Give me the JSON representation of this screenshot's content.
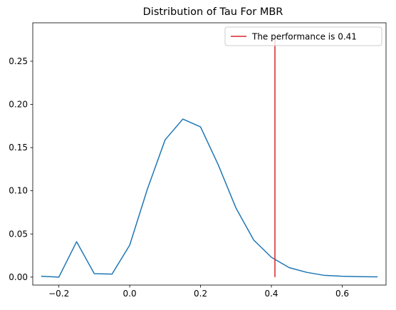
{
  "chart_data": {
    "type": "line",
    "title": "Distribution of Tau For MBR",
    "xlabel": "",
    "ylabel": "",
    "xlim": [
      -0.2737,
      0.7237
    ],
    "ylim": [
      -0.0092,
      0.2945
    ],
    "xticks": [
      -0.2,
      0.0,
      0.2,
      0.4,
      0.6
    ],
    "xtick_labels": [
      "−0.2",
      "0.0",
      "0.2",
      "0.4",
      "0.6"
    ],
    "yticks": [
      0.0,
      0.05,
      0.1,
      0.15,
      0.2,
      0.25
    ],
    "ytick_labels": [
      "0.00",
      "0.05",
      "0.10",
      "0.15",
      "0.20",
      "0.25"
    ],
    "grid": false,
    "legend_position": "top-right",
    "series": [
      {
        "color": "#1f77b4",
        "x": [
          -0.25,
          -0.2,
          -0.15,
          -0.1,
          -0.05,
          0.0,
          0.05,
          0.1,
          0.15,
          0.2,
          0.25,
          0.3,
          0.35,
          0.4,
          0.45,
          0.5,
          0.55,
          0.6,
          0.65,
          0.7
        ],
        "y": [
          0.001,
          0.0,
          0.041,
          0.004,
          0.0035,
          0.037,
          0.102,
          0.159,
          0.183,
          0.174,
          0.13,
          0.08,
          0.043,
          0.023,
          0.011,
          0.0055,
          0.002,
          0.001,
          0.0005,
          0.0003
        ]
      }
    ],
    "vline": {
      "name": "The performance is 0.41",
      "x": 0.41,
      "ymin": 0.0,
      "ymax": 0.277,
      "color": "#d62728"
    }
  }
}
